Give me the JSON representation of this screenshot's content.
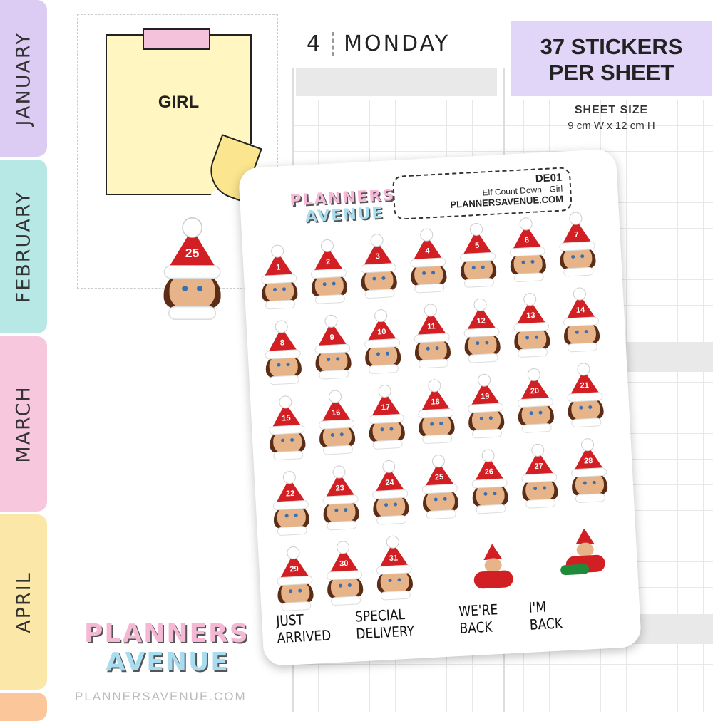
{
  "tabs": [
    {
      "label": "JANUARY",
      "color": "#dccbf2"
    },
    {
      "label": "FEBRUARY",
      "color": "#b8e8e6"
    },
    {
      "label": "MARCH",
      "color": "#f7c7dd"
    },
    {
      "label": "APRIL",
      "color": "#fbe7a8"
    }
  ],
  "planner": {
    "day_number": "4",
    "day_name": "MONDAY"
  },
  "promo": {
    "title_line1": "37 STICKERS",
    "title_line2": "PER SHEET",
    "size_label": "SHEET SIZE",
    "size_value": "9 cm W  x  12 cm H"
  },
  "note": {
    "text": "GIRL"
  },
  "sample_number": "25",
  "sheet": {
    "logo_line1": "PLANNERS",
    "logo_line2": "AVENUE",
    "code": "DE01",
    "name": "Elf Count Down - Girl",
    "website": "PLANNERSAVENUE.COM",
    "numbers": [
      "1",
      "2",
      "3",
      "4",
      "5",
      "6",
      "7",
      "8",
      "9",
      "10",
      "11",
      "12",
      "13",
      "14",
      "15",
      "16",
      "17",
      "18",
      "19",
      "20",
      "21",
      "22",
      "23",
      "24",
      "25",
      "26",
      "27",
      "28",
      "29",
      "30",
      "31"
    ],
    "labels": [
      "JUST ARRIVED",
      "SPECIAL DELIVERY",
      "WE'RE BACK",
      "I'M BACK"
    ]
  },
  "brand": {
    "logo_line1": "PLANNERS",
    "logo_line2": "AVENUE",
    "website": "PLANNERSAVENUE.COM"
  },
  "colors": {
    "hat": "#d21f24",
    "promo_bg": "#e2d6f8",
    "note": "#fff6c2"
  }
}
